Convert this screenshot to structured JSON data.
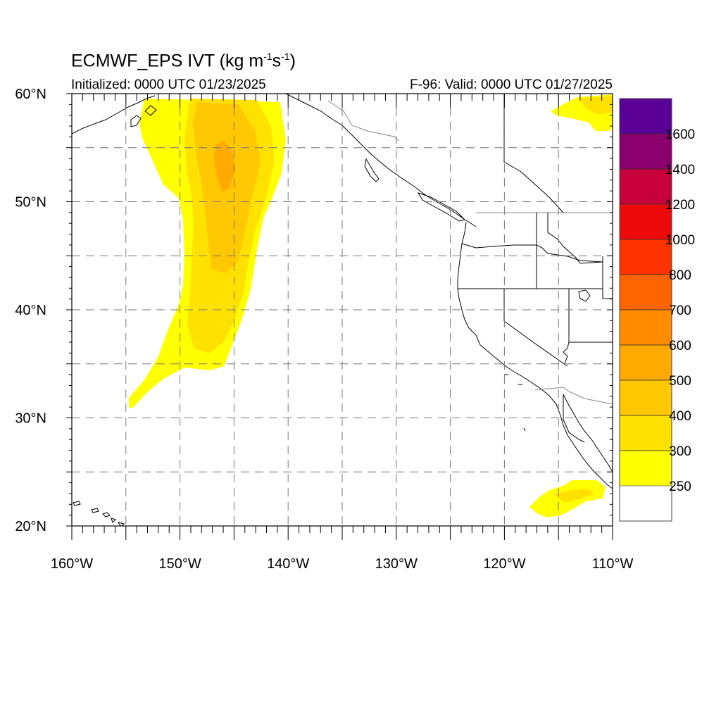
{
  "title": {
    "main_prefix": "ECMWF_EPS IVT (kg m",
    "exp1": "-1",
    "mid": "s",
    "exp2": "-1",
    "suffix": ")",
    "initialized": "Initialized: 0000 UTC 01/23/2025",
    "valid": "F-96: Valid: 0000 UTC 01/27/2025"
  },
  "map": {
    "lon_range": [
      -160,
      -110
    ],
    "lat_range": [
      20,
      60
    ],
    "lat_labels": [
      "60°N",
      "50°N",
      "40°N",
      "30°N",
      "20°N"
    ],
    "lon_labels": [
      "160°W",
      "150°W",
      "140°W",
      "130°W",
      "120°W",
      "110°W"
    ],
    "grid": "dashed",
    "projection": "cylindrical equidistant"
  },
  "colorbar": {
    "labels": [
      "250",
      "300",
      "400",
      "500",
      "600",
      "700",
      "800",
      "1000",
      "1200",
      "1400",
      "1600"
    ],
    "colors": [
      "#ffff00",
      "#ffe100",
      "#ffc800",
      "#ffaa00",
      "#ff8c00",
      "#ff6400",
      "#ff3200",
      "#ee0a0a",
      "#c8003c",
      "#8c006e",
      "#5a0096"
    ],
    "empty_color": "#ffffff",
    "placement": "right"
  }
}
